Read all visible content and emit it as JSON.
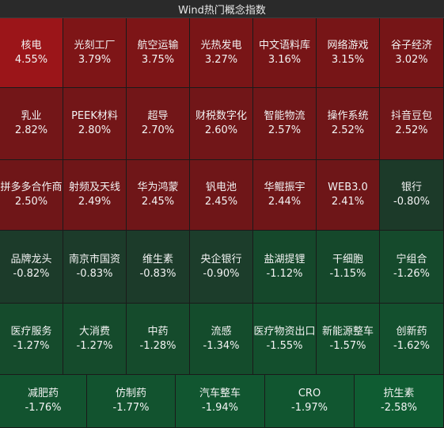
{
  "header": {
    "title": "Wind热门概念指数"
  },
  "tiles": [
    [
      {
        "name": "核电",
        "change": "4.55%",
        "color": "#9b1519"
      },
      {
        "name": "光刻工厂",
        "change": "3.79%",
        "color": "#7e1517"
      },
      {
        "name": "航空运输",
        "change": "3.75%",
        "color": "#7d1517"
      },
      {
        "name": "光热发电",
        "change": "3.27%",
        "color": "#791517"
      },
      {
        "name": "中文语料库",
        "change": "3.16%",
        "color": "#771517"
      },
      {
        "name": "网络游戏",
        "change": "3.15%",
        "color": "#771517"
      },
      {
        "name": "谷子经济",
        "change": "3.02%",
        "color": "#761517"
      }
    ],
    [
      {
        "name": "乳业",
        "change": "2.82%",
        "color": "#731618"
      },
      {
        "name": "PEEK材料",
        "change": "2.80%",
        "color": "#731618"
      },
      {
        "name": "超导",
        "change": "2.70%",
        "color": "#721618"
      },
      {
        "name": "财税数字化",
        "change": "2.60%",
        "color": "#711618"
      },
      {
        "name": "智能物流",
        "change": "2.57%",
        "color": "#701618"
      },
      {
        "name": "操作系统",
        "change": "2.52%",
        "color": "#701618"
      },
      {
        "name": "抖音豆包",
        "change": "2.52%",
        "color": "#701618"
      }
    ],
    [
      {
        "name": "拼多多合作商",
        "change": "2.50%",
        "color": "#6f1618"
      },
      {
        "name": "射频及天线",
        "change": "2.49%",
        "color": "#6f1618"
      },
      {
        "name": "华为鸿蒙",
        "change": "2.45%",
        "color": "#6f1618"
      },
      {
        "name": "钒电池",
        "change": "2.45%",
        "color": "#6f1618"
      },
      {
        "name": "华鲲振宇",
        "change": "2.44%",
        "color": "#6f1618"
      },
      {
        "name": "WEB3.0",
        "change": "2.41%",
        "color": "#6e1618"
      },
      {
        "name": "银行",
        "change": "-0.80%",
        "color": "#1c3a29"
      }
    ],
    [
      {
        "name": "品牌龙头",
        "change": "-0.82%",
        "color": "#1c3b2a"
      },
      {
        "name": "南京市国资",
        "change": "-0.83%",
        "color": "#1c3b2a"
      },
      {
        "name": "维生素",
        "change": "-0.83%",
        "color": "#1c3b2a"
      },
      {
        "name": "央企银行",
        "change": "-0.90%",
        "color": "#1c3d2b"
      },
      {
        "name": "盐湖提锂",
        "change": "-1.12%",
        "color": "#15482b"
      },
      {
        "name": "干细胞",
        "change": "-1.15%",
        "color": "#15482b"
      },
      {
        "name": "宁组合",
        "change": "-1.26%",
        "color": "#154a2c"
      }
    ],
    [
      {
        "name": "医疗服务",
        "change": "-1.27%",
        "color": "#154b2c"
      },
      {
        "name": "大消费",
        "change": "-1.27%",
        "color": "#154b2c"
      },
      {
        "name": "中药",
        "change": "-1.28%",
        "color": "#154b2c"
      },
      {
        "name": "流感",
        "change": "-1.34%",
        "color": "#144c2c"
      },
      {
        "name": "医疗物资出口",
        "change": "-1.55%",
        "color": "#134f2d"
      },
      {
        "name": "新能源整车",
        "change": "-1.57%",
        "color": "#134f2d"
      },
      {
        "name": "创新药",
        "change": "-1.62%",
        "color": "#13502e"
      }
    ],
    [
      {
        "name": "减肥药",
        "change": "-1.76%",
        "color": "#12532f"
      },
      {
        "name": "仿制药",
        "change": "-1.77%",
        "color": "#12532f"
      },
      {
        "name": "汽车整车",
        "change": "-1.94%",
        "color": "#115630"
      },
      {
        "name": "CRO",
        "change": "-1.97%",
        "color": "#115630"
      },
      {
        "name": "抗生素",
        "change": "-2.58%",
        "color": "#0f5c32"
      }
    ]
  ]
}
